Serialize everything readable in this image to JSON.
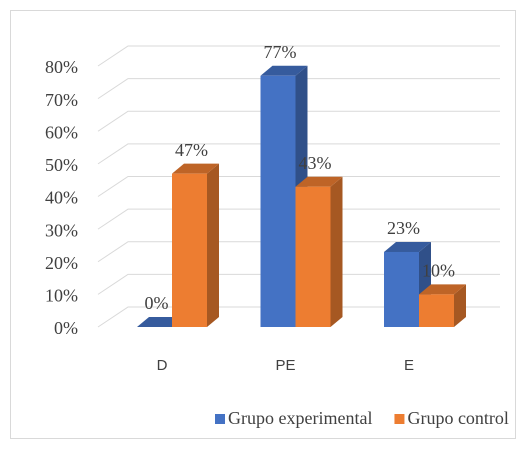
{
  "chart_data": {
    "type": "bar3d",
    "categories": [
      "D",
      "PE",
      "E"
    ],
    "series": [
      {
        "name": "Grupo experimental",
        "color": "#4472c4",
        "values": [
          0,
          77,
          23
        ],
        "value_labels": [
          "0%",
          "77%",
          "23%"
        ]
      },
      {
        "name": "Grupo control",
        "color": "#ed7d31",
        "values": [
          47,
          43,
          10
        ],
        "value_labels": [
          "47%",
          "43%",
          "10%"
        ]
      }
    ],
    "ylim": [
      0,
      80
    ],
    "yticks": [
      {
        "value": 0,
        "label": "0%"
      },
      {
        "value": 10,
        "label": "10%"
      },
      {
        "value": 20,
        "label": "20%"
      },
      {
        "value": 30,
        "label": "30%"
      },
      {
        "value": 40,
        "label": "40%"
      },
      {
        "value": 50,
        "label": "50%"
      },
      {
        "value": 60,
        "label": "60%"
      },
      {
        "value": 70,
        "label": "70%"
      },
      {
        "value": 80,
        "label": "80%"
      }
    ],
    "grid": true,
    "legend": "bottom"
  }
}
